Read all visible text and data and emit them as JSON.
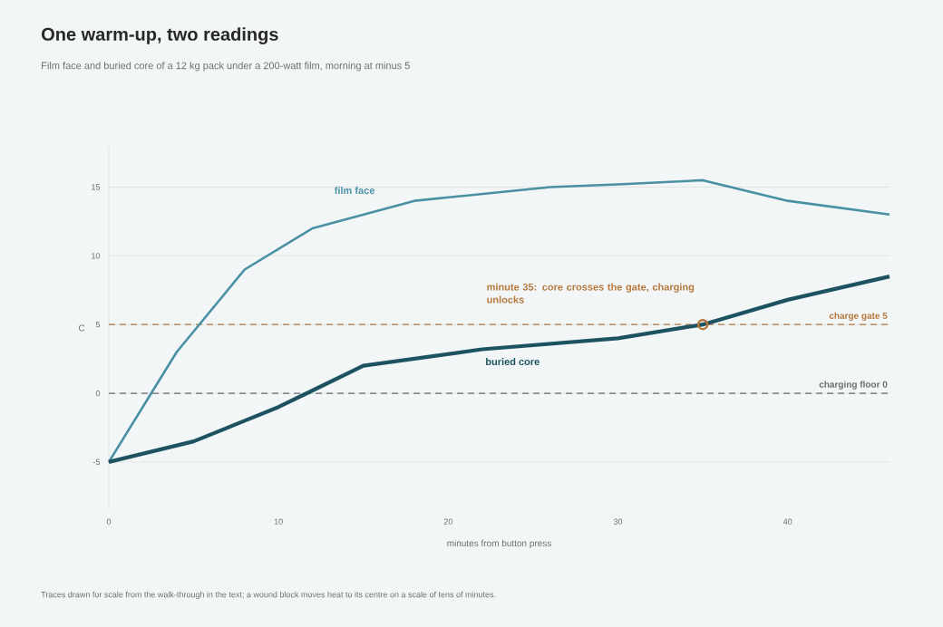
{
  "chart_data": {
    "type": "line",
    "title": "One warm-up, two readings",
    "subtitle": "Film face and buried core of a 12 kg pack under a 200-watt film, morning at minus 5",
    "xlabel": "minutes from button press",
    "ylabel": "C",
    "xlim": [
      0,
      46
    ],
    "ylim": [
      -8.5,
      18
    ],
    "xticks": [
      0,
      10,
      20,
      30,
      40
    ],
    "yticks": [
      -5,
      0,
      5,
      10,
      15
    ],
    "grid": "y",
    "series": [
      {
        "name": "film face",
        "color": "#4a90a4",
        "x": [
          0,
          4,
          8,
          12,
          18,
          26,
          30,
          35,
          40,
          46
        ],
        "values": [
          -5,
          3,
          9,
          12,
          14,
          15,
          15.2,
          15.5,
          14,
          13
        ]
      },
      {
        "name": "buried core",
        "color": "#1d5360",
        "x": [
          0,
          5,
          8,
          10,
          12,
          15,
          22,
          30,
          35,
          40,
          46
        ],
        "values": [
          -5,
          -3.5,
          -2,
          -1,
          0.2,
          2,
          3.2,
          4,
          5,
          6.8,
          8.5
        ]
      }
    ],
    "ref_lines": [
      {
        "axis": "y",
        "value": 5,
        "label": "charge gate 5",
        "color": "#b5763a",
        "line_style": "dashed"
      },
      {
        "axis": "y",
        "value": 0,
        "label": "charging floor 0",
        "color": "#6b6b6b",
        "line_style": "dashed"
      }
    ],
    "annotations": [
      {
        "text": "minute 35: core crosses the gate, charging unlocks",
        "x": 35,
        "y": 5
      },
      "Traces drawn for scale from the walk-through in the text; a wound block moves heat to its centre on a scale of tens of minutes."
    ]
  }
}
